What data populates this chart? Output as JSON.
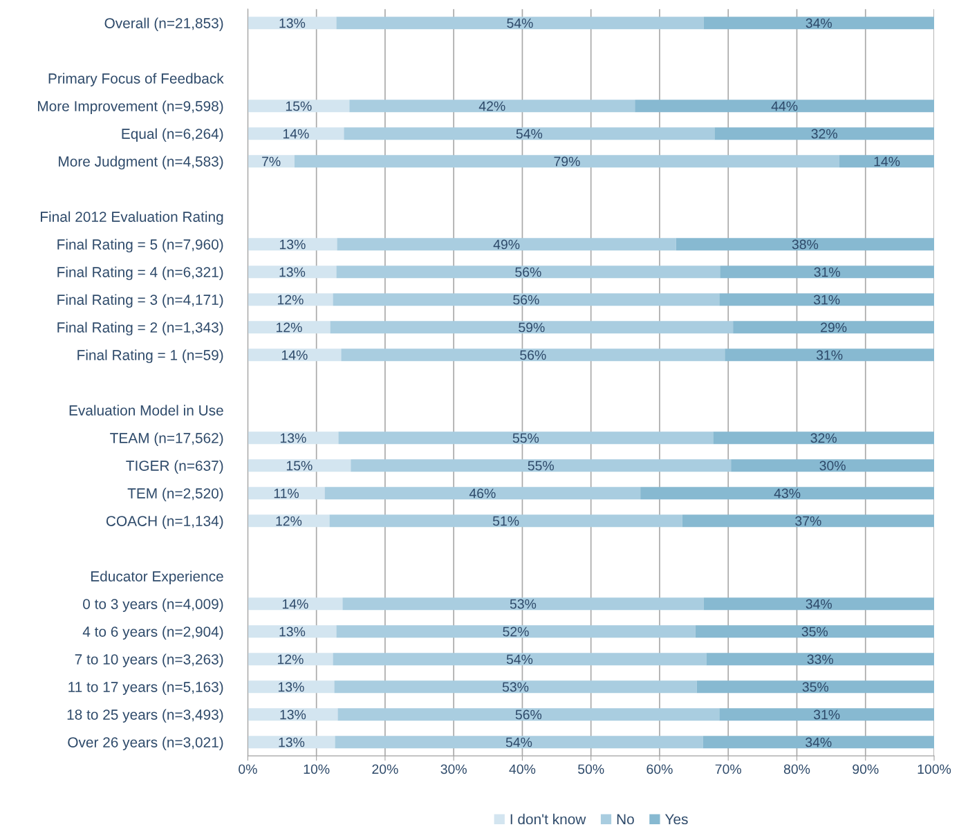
{
  "chart_data": {
    "type": "bar",
    "orientation": "horizontal",
    "stacked": true,
    "categories": [
      "Overall (n=21,853)",
      null,
      "Primary Focus of Feedback",
      "More Improvement (n=9,598)",
      "Equal (n=6,264)",
      "More Judgment (n=4,583)",
      null,
      "Final 2012 Evaluation Rating",
      "Final Rating = 5 (n=7,960)",
      "Final Rating = 4 (n=6,321)",
      "Final Rating = 3 (n=4,171)",
      "Final Rating = 2 (n=1,343)",
      "Final Rating = 1 (n=59)",
      null,
      "Evaluation Model in Use",
      "TEAM (n=17,562)",
      "TIGER (n=637)",
      "TEM (n=2,520)",
      "COACH (n=1,134)",
      null,
      "Educator Experience",
      "0 to 3 years (n=4,009)",
      "4 to 6 years (n=2,904)",
      "7 to 10 years (n=3,263)",
      "11 to 17 years (n=5,163)",
      "18 to 25 years (n=3,493)",
      "Over 26 years (n=3,021)"
    ],
    "series": [
      {
        "name": "I don't know",
        "color": "#d3e5f0",
        "values": [
          12.9,
          null,
          null,
          14.8,
          14.0,
          6.8,
          null,
          null,
          13.0,
          12.9,
          12.4,
          12.0,
          13.6,
          null,
          null,
          13.2,
          15.0,
          11.2,
          11.9,
          null,
          null,
          13.8,
          12.9,
          12.4,
          12.6,
          13.1,
          12.7
        ],
        "value_labels": [
          "13%",
          null,
          null,
          "15%",
          "14%",
          "7%",
          null,
          null,
          "13%",
          "13%",
          "12%",
          "12%",
          "14%",
          null,
          null,
          "13%",
          "15%",
          "11%",
          "12%",
          null,
          null,
          "14%",
          "13%",
          "12%",
          "13%",
          "13%",
          "13%"
        ]
      },
      {
        "name": "No",
        "color": "#a9cde0",
        "values": [
          53.5,
          null,
          null,
          41.6,
          54.0,
          79.4,
          null,
          null,
          49.4,
          55.9,
          56.3,
          58.7,
          55.9,
          null,
          null,
          54.6,
          55.4,
          46.0,
          51.4,
          null,
          null,
          52.6,
          52.3,
          54.4,
          52.8,
          55.6,
          53.6
        ],
        "value_labels": [
          "54%",
          null,
          null,
          "42%",
          "54%",
          "79%",
          null,
          null,
          "49%",
          "56%",
          "56%",
          "59%",
          "56%",
          null,
          null,
          "55%",
          "55%",
          "46%",
          "51%",
          null,
          null,
          "53%",
          "52%",
          "54%",
          "53%",
          "56%",
          "54%"
        ]
      },
      {
        "name": "Yes",
        "color": "#87b9d1",
        "values": [
          33.6,
          null,
          null,
          43.6,
          32.0,
          13.8,
          null,
          null,
          37.6,
          31.2,
          31.3,
          29.3,
          30.5,
          null,
          null,
          32.2,
          29.6,
          42.8,
          36.7,
          null,
          null,
          33.6,
          34.8,
          33.2,
          34.6,
          31.3,
          33.7
        ],
        "value_labels": [
          "34%",
          null,
          null,
          "44%",
          "32%",
          "14%",
          null,
          null,
          "38%",
          "31%",
          "31%",
          "29%",
          "31%",
          null,
          null,
          "32%",
          "30%",
          "43%",
          "37%",
          null,
          null,
          "34%",
          "35%",
          "33%",
          "35%",
          "31%",
          "34%"
        ]
      }
    ],
    "xlim": [
      0,
      100
    ],
    "xticks": [
      {
        "value": 0,
        "label": "0%"
      },
      {
        "value": 10,
        "label": "10%"
      },
      {
        "value": 20,
        "label": "20%"
      },
      {
        "value": 30,
        "label": "30%"
      },
      {
        "value": 40,
        "label": "40%"
      },
      {
        "value": 50,
        "label": "50%"
      },
      {
        "value": 60,
        "label": "60%"
      },
      {
        "value": 70,
        "label": "70%"
      },
      {
        "value": 80,
        "label": "80%"
      },
      {
        "value": 90,
        "label": "90%"
      },
      {
        "value": 100,
        "label": "100%"
      }
    ],
    "grid": "x",
    "legend": "bottom"
  }
}
